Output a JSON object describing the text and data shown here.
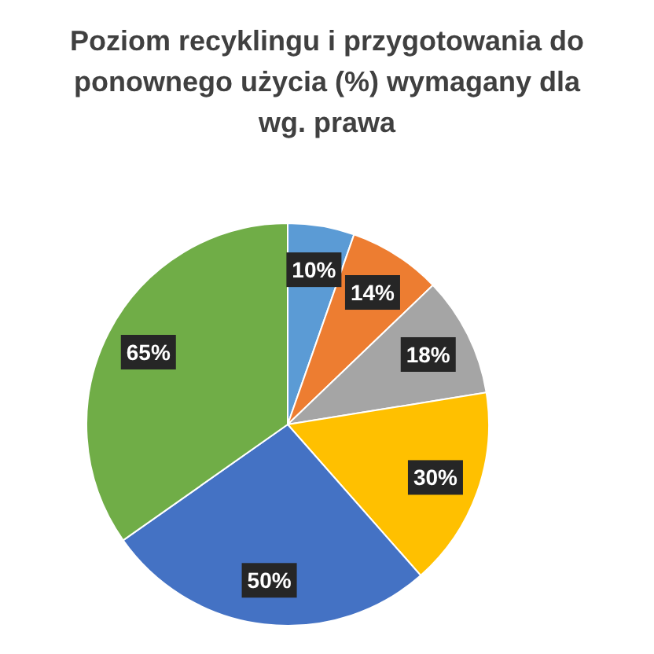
{
  "chart_data": {
    "type": "pie",
    "title": "Poziom recyklingu i przygotowania do\nponownego użycia (%) wymagany dla\nwg. prawa",
    "categories": [
      null,
      null,
      null,
      null,
      null,
      null
    ],
    "values": [
      10,
      14,
      18,
      30,
      50,
      65
    ],
    "colors": [
      "#5b9bd5",
      "#ed7d31",
      "#a5a5a5",
      "#ffc000",
      "#4472c4",
      "#70ad47"
    ],
    "value_labels": [
      "10%",
      "14%",
      "18%",
      "30%",
      "50%",
      "65%"
    ]
  }
}
